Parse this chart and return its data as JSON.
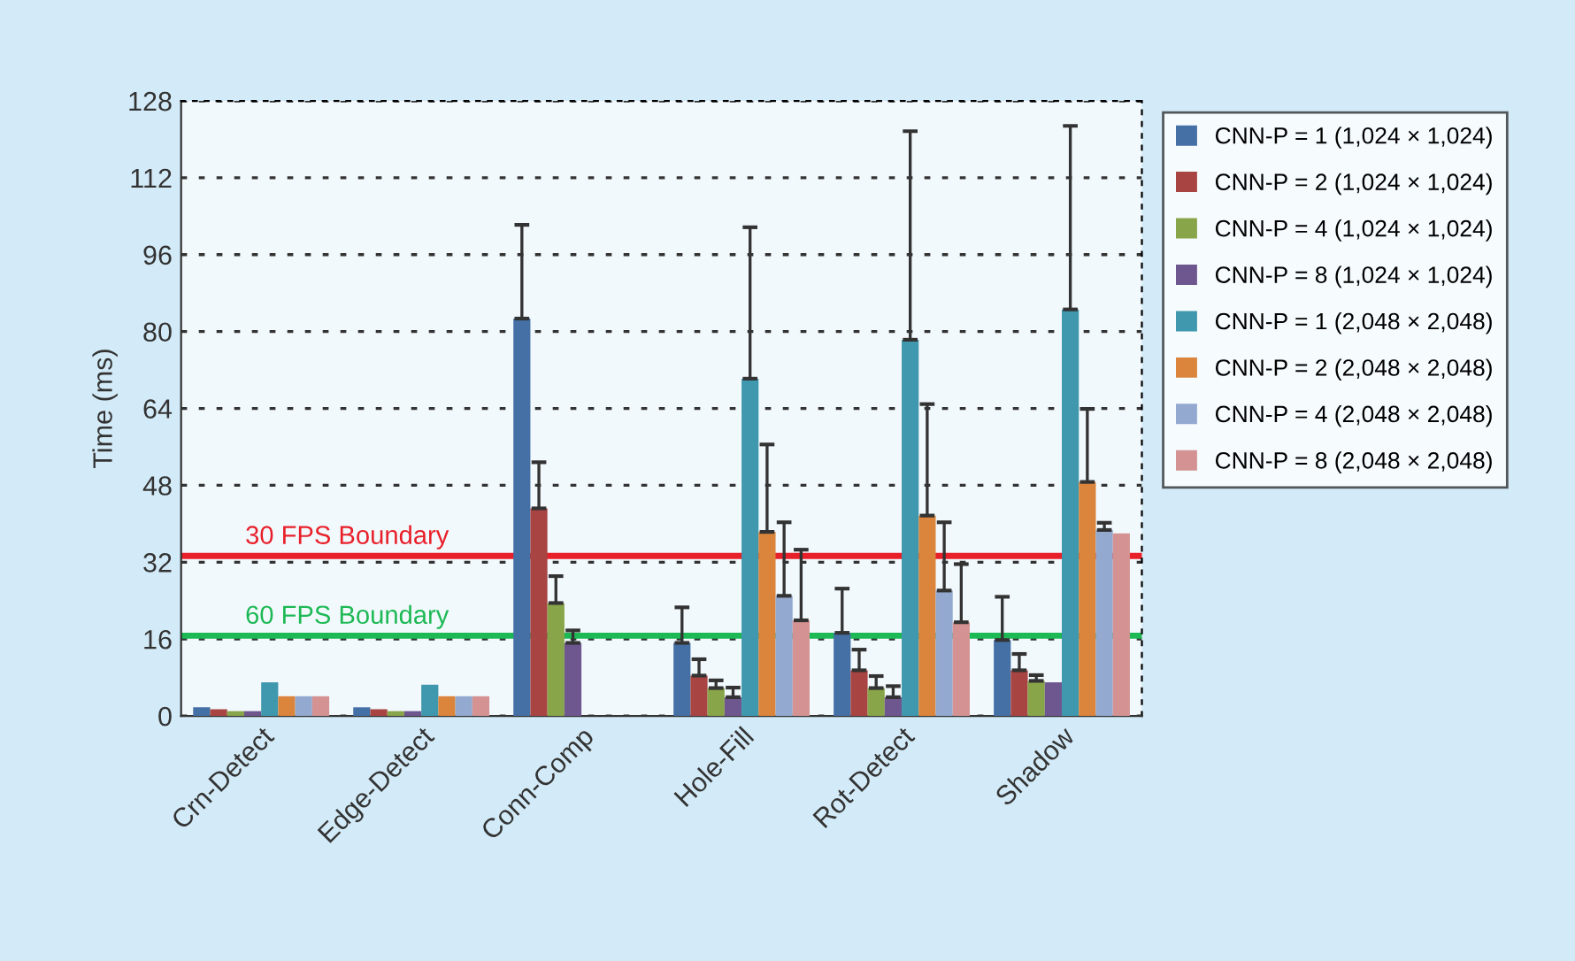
{
  "chart_data": {
    "type": "bar",
    "ylabel": "Time (ms)",
    "categories": [
      "Crn-Detect",
      "Edge-Detect",
      "Conn-Comp",
      "Hole-Fill",
      "Rot-Detect",
      "Shadow"
    ],
    "series": [
      {
        "name": "CNN-P = 1 (1,024 × 1,024)",
        "color": "#4470a5",
        "values": [
          1.8,
          1.8,
          82.7,
          15.2,
          17.3,
          15.8
        ],
        "errors": [
          null,
          null,
          [
            82.7,
            102.2
          ],
          [
            15.2,
            22.6
          ],
          [
            17.3,
            26.5
          ],
          [
            15.8,
            24.8
          ]
        ]
      },
      {
        "name": "CNN-P = 2 (1,024 × 1,024)",
        "color": "#a84442",
        "values": [
          1.4,
          1.4,
          43.2,
          8.4,
          9.5,
          9.5
        ],
        "errors": [
          null,
          null,
          [
            43.2,
            52.8
          ],
          [
            8.4,
            11.8
          ],
          [
            9.5,
            13.8
          ],
          [
            9.5,
            12.9
          ]
        ]
      },
      {
        "name": "CNN-P = 4 (1,024 × 1,024)",
        "color": "#88a549",
        "values": [
          1.0,
          1.0,
          23.5,
          5.8,
          5.8,
          7.3
        ],
        "errors": [
          null,
          null,
          [
            23.5,
            29.1
          ],
          [
            5.8,
            7.4
          ],
          [
            5.8,
            8.3
          ],
          [
            7.3,
            8.5
          ]
        ]
      },
      {
        "name": "CNN-P = 8 (1,024 × 1,024)",
        "color": "#6e578f",
        "values": [
          1.0,
          1.0,
          15.2,
          3.9,
          3.9,
          7.0
        ],
        "errors": [
          null,
          null,
          [
            15.2,
            17.8
          ],
          [
            3.9,
            5.9
          ],
          [
            3.9,
            6.2
          ],
          null
        ]
      },
      {
        "name": "CNN-P = 1 (2,048 × 2,048)",
        "color": "#3f98ae",
        "values": [
          7.0,
          6.5,
          null,
          70.2,
          78.3,
          84.6
        ],
        "errors": [
          null,
          null,
          null,
          [
            70.2,
            101.7
          ],
          [
            78.3,
            121.7
          ],
          [
            84.6,
            122.8
          ]
        ]
      },
      {
        "name": "CNN-P = 2 (2,048 × 2,048)",
        "color": "#db843b",
        "values": [
          4.1,
          4.1,
          null,
          38.3,
          41.7,
          48.7
        ],
        "errors": [
          null,
          null,
          null,
          [
            38.3,
            56.5
          ],
          [
            41.7,
            64.9
          ],
          [
            48.7,
            63.9
          ]
        ]
      },
      {
        "name": "CNN-P = 4 (2,048 × 2,048)",
        "color": "#94a9cf",
        "values": [
          4.1,
          4.1,
          null,
          25.0,
          26.1,
          38.7
        ],
        "errors": [
          null,
          null,
          null,
          [
            25.0,
            40.3
          ],
          [
            26.1,
            40.3
          ],
          [
            38.7,
            40.2
          ]
        ]
      },
      {
        "name": "CNN-P = 8 (2,048 × 2,048)",
        "color": "#d49292",
        "values": [
          4.1,
          4.1,
          null,
          19.9,
          19.5,
          38.0
        ],
        "errors": [
          null,
          null,
          null,
          [
            19.9,
            34.6
          ],
          [
            19.5,
            31.6
          ],
          null
        ]
      }
    ],
    "ylim": [
      0,
      128
    ],
    "yticks": [
      0,
      16,
      32,
      48,
      64,
      80,
      96,
      112,
      128
    ],
    "grid": "y",
    "legend": "right",
    "ref_lines": [
      {
        "axis": "y",
        "value": 33.3,
        "label": "30 FPS Boundary",
        "color": "#e8202a"
      },
      {
        "axis": "y",
        "value": 16.7,
        "label": "60 FPS Boundary",
        "color": "#1db954"
      }
    ]
  }
}
